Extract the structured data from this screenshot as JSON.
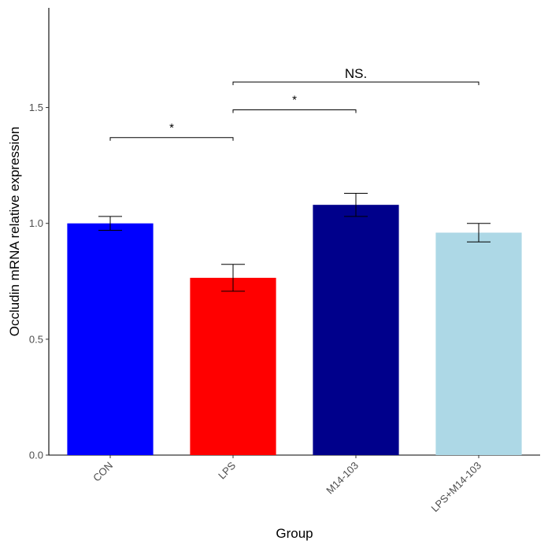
{
  "chart_data": {
    "type": "bar",
    "title": "",
    "xlabel": "Group",
    "ylabel": "Occludin mRNA relative expression",
    "categories": [
      "CON",
      "LPS",
      "M14-103",
      "LPS+M14-103"
    ],
    "values": [
      1.0,
      0.765,
      1.08,
      0.96
    ],
    "errors": [
      0.03,
      0.058,
      0.05,
      0.04
    ],
    "colors": [
      "#0000FF",
      "#FF0000",
      "#00008B",
      "#ADD8E6"
    ],
    "ylim": [
      0,
      1.93
    ],
    "yticks": [
      0.0,
      0.5,
      1.0,
      1.5
    ],
    "ytick_labels": [
      "0.0",
      "0.5",
      "1.0",
      "1.5"
    ],
    "grid": false,
    "legend": "none",
    "significance": [
      {
        "from": 0,
        "to": 1,
        "y": 1.37,
        "label": "*"
      },
      {
        "from": 1,
        "to": 2,
        "y": 1.49,
        "label": "*"
      },
      {
        "from": 1,
        "to": 3,
        "y": 1.61,
        "label": "NS."
      }
    ]
  }
}
